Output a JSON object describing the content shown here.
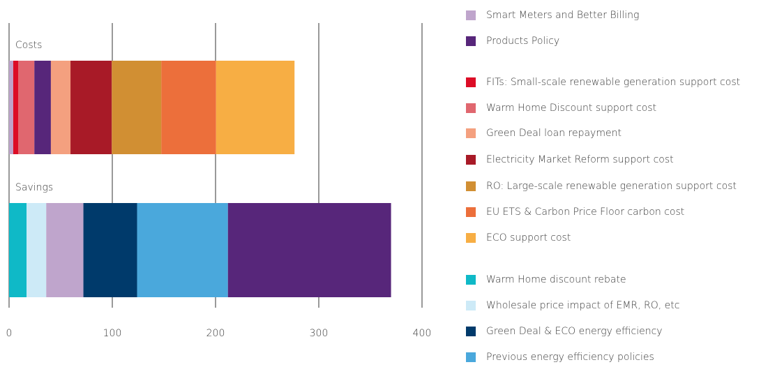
{
  "chart_data": {
    "type": "stacked-barh",
    "categories": [
      "Costs",
      "Savings"
    ],
    "xlim": [
      0,
      400
    ],
    "xticks": [
      0,
      100,
      200,
      300,
      400
    ],
    "grid": true,
    "series": [
      {
        "name": "Smart Meters and Better Billing",
        "color": "#bfa5cc",
        "values": [
          4,
          36
        ]
      },
      {
        "name": "Products Policy",
        "color": "#57267a",
        "values": [
          16,
          158
        ]
      },
      {
        "name": "FITs: Small-scale renewable generation support cost",
        "color": "#dc0d26",
        "values": [
          5,
          null
        ]
      },
      {
        "name": "Warm Home Discount support cost",
        "color": "#e0676f",
        "values": [
          15.5,
          null
        ]
      },
      {
        "name": "Green Deal loan repayment",
        "color": "#f4a07f",
        "values": [
          19,
          null
        ]
      },
      {
        "name": "Electricity Market Reform support cost",
        "color": "#a81a27",
        "values": [
          40,
          null
        ]
      },
      {
        "name": "RO: Large-scale renewable generation support cost",
        "color": "#d18f33",
        "values": [
          48,
          null
        ]
      },
      {
        "name": "EU ETS & Carbon Price Floor carbon cost",
        "color": "#ec6f3b",
        "values": [
          53,
          null
        ]
      },
      {
        "name": "ECO support cost",
        "color": "#f7ae44",
        "values": [
          76,
          null
        ]
      },
      {
        "name": "Warm Home discount rebate",
        "color": "#0fb9c7",
        "values": [
          null,
          17
        ]
      },
      {
        "name": "Wholesale price impact of EMR, RO, etc",
        "color": "#cdeaf7",
        "values": [
          null,
          19
        ]
      },
      {
        "name": "Green Deal & ECO energy efficiency",
        "color": "#003a6b",
        "values": [
          null,
          52
        ]
      },
      {
        "name": "Previous energy efficiency policies",
        "color": "#4aa8dc",
        "values": [
          null,
          88
        ]
      }
    ]
  }
}
